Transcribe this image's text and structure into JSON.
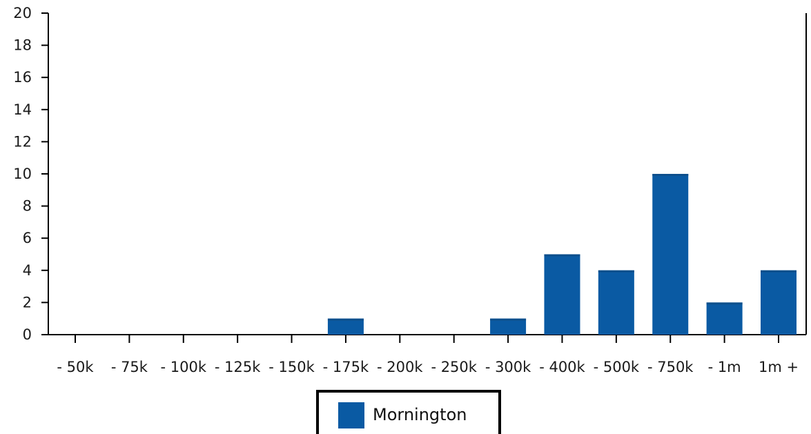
{
  "chart_data": {
    "type": "bar",
    "categories": [
      "- 50k",
      "- 75k",
      "- 100k",
      "- 125k",
      "- 150k",
      "- 175k",
      "- 200k",
      "- 250k",
      "- 300k",
      "- 400k",
      "- 500k",
      "- 750k",
      "- 1m",
      "1m +"
    ],
    "series": [
      {
        "name": "Mornington",
        "values": [
          0,
          0,
          0,
          0,
          0,
          1,
          0,
          0,
          1,
          5,
          4,
          10,
          2,
          4
        ],
        "color": "#0a5aa3"
      }
    ],
    "xlabel": "",
    "ylabel": "",
    "ylim": [
      0,
      20
    ],
    "yticks": [
      "0",
      "2",
      "4",
      "6",
      "8",
      "10",
      "12",
      "14",
      "16",
      "18",
      "20"
    ],
    "grid": false,
    "legend_position": "bottom-center"
  }
}
